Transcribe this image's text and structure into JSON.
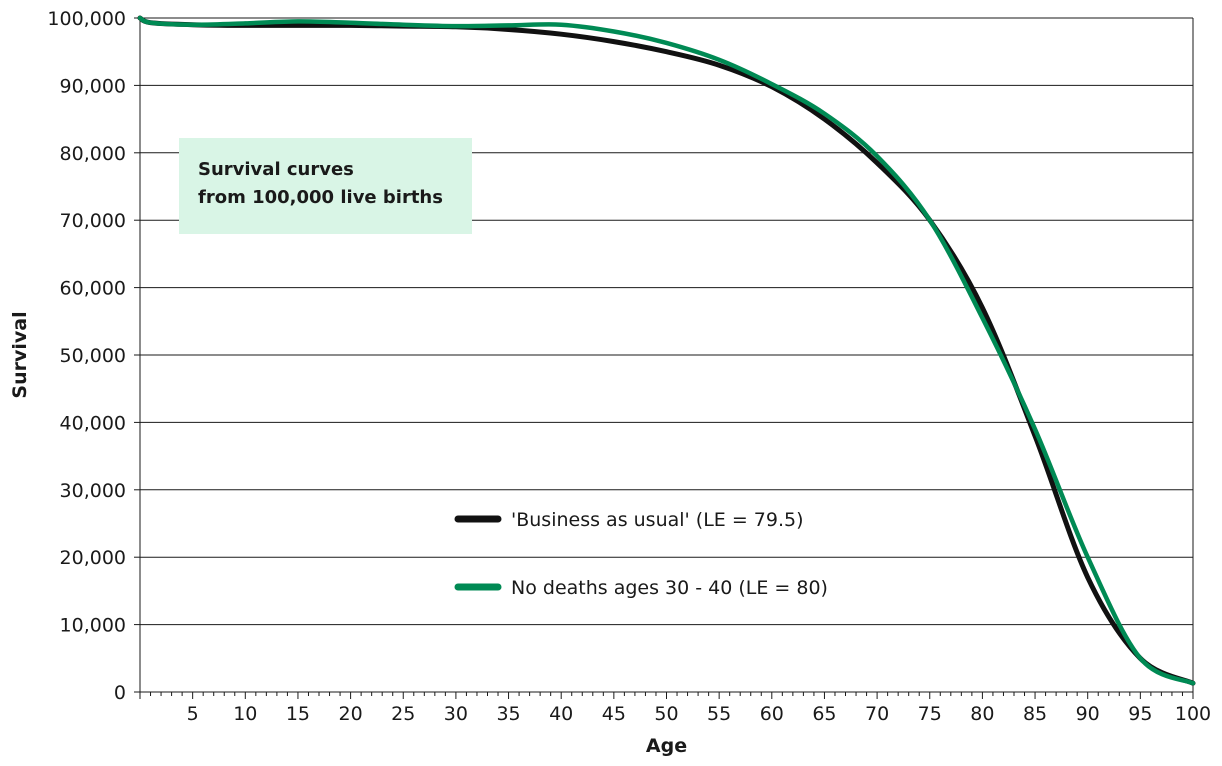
{
  "chart_data": {
    "type": "line",
    "title": "",
    "annotation": [
      "Survival curves",
      "from 100,000 live births"
    ],
    "annotation_bg": "#d9f5e6",
    "xlabel": "Age",
    "ylabel": "Survival",
    "xlim": [
      0,
      100
    ],
    "ylim": [
      0,
      100000
    ],
    "x_ticks": [
      5,
      10,
      15,
      20,
      25,
      30,
      35,
      40,
      45,
      50,
      55,
      60,
      65,
      70,
      75,
      80,
      85,
      90,
      95,
      100
    ],
    "x_tick_labels": [
      "5",
      "10",
      "15",
      "20",
      "25",
      "30",
      "35",
      "40",
      "45",
      "50",
      "55",
      "60",
      "65",
      "70",
      "75",
      "80",
      "85",
      "90",
      "95",
      "100"
    ],
    "y_ticks": [
      0,
      10000,
      20000,
      30000,
      40000,
      50000,
      60000,
      70000,
      80000,
      90000,
      100000
    ],
    "y_tick_labels": [
      "0",
      "10,000",
      "20,000",
      "30,000",
      "40,000",
      "50,000",
      "60,000",
      "70,000",
      "80,000",
      "90,000",
      "100,000"
    ],
    "grid": "horizontal",
    "legend_position": "center-bottom",
    "series": [
      {
        "name": "'Business as usual' (LE = 79.5)",
        "color": "#111111",
        "x": [
          0,
          1,
          5,
          10,
          15,
          20,
          25,
          30,
          35,
          40,
          45,
          50,
          55,
          60,
          65,
          70,
          75,
          80,
          85,
          90,
          95,
          100
        ],
        "y": [
          100000,
          99300,
          99000,
          98900,
          98900,
          98900,
          98800,
          98700,
          98300,
          97600,
          96500,
          95000,
          93000,
          89800,
          85000,
          78500,
          70000,
          57000,
          38000,
          17000,
          5000,
          1300
        ]
      },
      {
        "name": "No deaths ages 30 - 40 (LE = 80)",
        "color": "#008a54",
        "x": [
          0,
          1,
          5,
          10,
          15,
          20,
          25,
          30,
          35,
          40,
          45,
          50,
          55,
          60,
          65,
          70,
          75,
          80,
          85,
          90,
          95,
          100
        ],
        "y": [
          100000,
          99300,
          99000,
          99200,
          99500,
          99300,
          99000,
          98800,
          98900,
          99000,
          98000,
          96300,
          93800,
          90200,
          85800,
          79500,
          70000,
          55500,
          39000,
          20000,
          5000,
          1300
        ]
      }
    ]
  }
}
